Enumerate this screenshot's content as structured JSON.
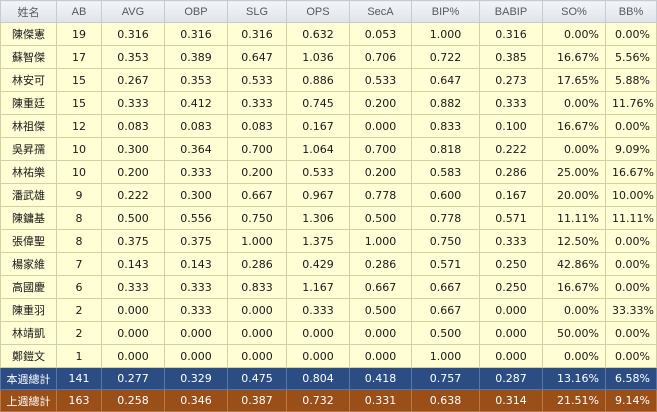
{
  "headers": [
    "姓名",
    "AB",
    "AVG",
    "OBP",
    "SLG",
    "OPS",
    "SecA",
    "BIP%",
    "BABIP",
    "SO%",
    "BB%"
  ],
  "rows": [
    [
      "陳傑憲",
      "19",
      "0.316",
      "0.316",
      "0.316",
      "0.632",
      "0.053",
      "1.000",
      "0.316",
      "0.00%",
      "0.00%"
    ],
    [
      "蘇智傑",
      "17",
      "0.353",
      "0.389",
      "0.647",
      "1.036",
      "0.706",
      "0.722",
      "0.385",
      "16.67%",
      "5.56%"
    ],
    [
      "林安可",
      "15",
      "0.267",
      "0.353",
      "0.533",
      "0.886",
      "0.533",
      "0.647",
      "0.273",
      "17.65%",
      "5.88%"
    ],
    [
      "陳重廷",
      "15",
      "0.333",
      "0.412",
      "0.333",
      "0.745",
      "0.200",
      "0.882",
      "0.333",
      "0.00%",
      "11.76%"
    ],
    [
      "林祖傑",
      "12",
      "0.083",
      "0.083",
      "0.083",
      "0.167",
      "0.000",
      "0.833",
      "0.100",
      "16.67%",
      "0.00%"
    ],
    [
      "吳昇孺",
      "10",
      "0.300",
      "0.364",
      "0.700",
      "1.064",
      "0.700",
      "0.818",
      "0.222",
      "0.00%",
      "9.09%"
    ],
    [
      "林祐樂",
      "10",
      "0.200",
      "0.333",
      "0.200",
      "0.533",
      "0.200",
      "0.583",
      "0.286",
      "25.00%",
      "16.67%"
    ],
    [
      "潘武雄",
      "9",
      "0.222",
      "0.300",
      "0.667",
      "0.967",
      "0.778",
      "0.600",
      "0.167",
      "20.00%",
      "10.00%"
    ],
    [
      "陳鏞基",
      "8",
      "0.500",
      "0.556",
      "0.750",
      "1.306",
      "0.500",
      "0.778",
      "0.571",
      "11.11%",
      "11.11%"
    ],
    [
      "張偉聖",
      "8",
      "0.375",
      "0.375",
      "1.000",
      "1.375",
      "1.000",
      "0.750",
      "0.333",
      "12.50%",
      "0.00%"
    ],
    [
      "楊家維",
      "7",
      "0.143",
      "0.143",
      "0.286",
      "0.429",
      "0.286",
      "0.571",
      "0.250",
      "42.86%",
      "0.00%"
    ],
    [
      "高國慶",
      "6",
      "0.333",
      "0.333",
      "0.833",
      "1.167",
      "0.667",
      "0.667",
      "0.250",
      "16.67%",
      "0.00%"
    ],
    [
      "陳重羽",
      "2",
      "0.000",
      "0.333",
      "0.000",
      "0.333",
      "0.500",
      "0.667",
      "0.000",
      "0.00%",
      "33.33%"
    ],
    [
      "林靖凱",
      "2",
      "0.000",
      "0.000",
      "0.000",
      "0.000",
      "0.000",
      "0.500",
      "0.000",
      "50.00%",
      "0.00%"
    ],
    [
      "鄭鎧文",
      "1",
      "0.000",
      "0.000",
      "0.000",
      "0.000",
      "0.000",
      "1.000",
      "0.000",
      "0.00%",
      "0.00%"
    ]
  ],
  "totals": [
    [
      "本週總計",
      "141",
      "0.277",
      "0.329",
      "0.475",
      "0.804",
      "0.418",
      "0.757",
      "0.287",
      "13.16%",
      "6.58%"
    ],
    [
      "上週總計",
      "163",
      "0.258",
      "0.346",
      "0.387",
      "0.732",
      "0.331",
      "0.638",
      "0.314",
      "21.51%",
      "9.14%"
    ]
  ],
  "colors": {
    "row_bg": "#fffed4",
    "this_week_bg": "#2b4d84",
    "last_week_bg": "#9a4f19"
  }
}
